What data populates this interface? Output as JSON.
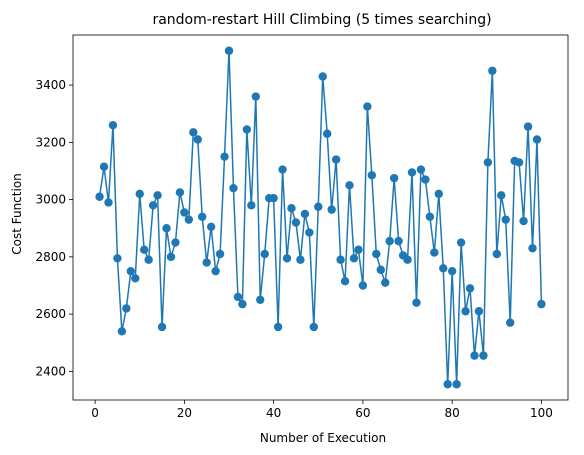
{
  "chart_data": {
    "type": "line",
    "title": "random-restart Hill Climbing (5 times searching)",
    "xlabel": "Number of Execution",
    "ylabel": "Cost Function",
    "xlim": [
      -4.95,
      105.95
    ],
    "ylim": [
      2300,
      3575
    ],
    "xticks": [
      0,
      20,
      40,
      60,
      80,
      100
    ],
    "yticks": [
      2400,
      2600,
      2800,
      3000,
      3200,
      3400
    ],
    "grid": false,
    "marker": "circle",
    "series": [
      {
        "color": "#1f77b4",
        "x": [
          1,
          2,
          3,
          4,
          5,
          6,
          7,
          8,
          9,
          10,
          11,
          12,
          13,
          14,
          15,
          16,
          17,
          18,
          19,
          20,
          21,
          22,
          23,
          24,
          25,
          26,
          27,
          28,
          29,
          30,
          31,
          32,
          33,
          34,
          35,
          36,
          37,
          38,
          39,
          40,
          41,
          42,
          43,
          44,
          45,
          46,
          47,
          48,
          49,
          50,
          51,
          52,
          53,
          54,
          55,
          56,
          57,
          58,
          59,
          60,
          61,
          62,
          63,
          64,
          65,
          66,
          67,
          68,
          69,
          70,
          71,
          72,
          73,
          74,
          75,
          76,
          77,
          78,
          79,
          80,
          81,
          82,
          83,
          84,
          85,
          86,
          87,
          88,
          89,
          90,
          91,
          92,
          93,
          94,
          95,
          96,
          97,
          98,
          99,
          100
        ],
        "y": [
          3010,
          3115,
          2990,
          3260,
          2795,
          2540,
          2620,
          2750,
          2725,
          3020,
          2825,
          2790,
          2980,
          3015,
          2555,
          2900,
          2800,
          2850,
          3025,
          2955,
          2930,
          3235,
          3210,
          2940,
          2780,
          2905,
          2750,
          2810,
          3150,
          3520,
          3040,
          2660,
          2635,
          3245,
          2980,
          3360,
          2650,
          2810,
          3005,
          3005,
          2555,
          3105,
          2795,
          2970,
          2920,
          2790,
          2950,
          2885,
          2555,
          2975,
          3430,
          3230,
          2965,
          3140,
          2790,
          2715,
          3050,
          2795,
          2825,
          2700,
          3325,
          3085,
          2810,
          2755,
          2710,
          2855,
          3075,
          2855,
          2805,
          2790,
          3095,
          2640,
          3105,
          3070,
          2940,
          2815,
          3020,
          2760,
          2355,
          2750,
          2355,
          2850,
          2610,
          2690,
          2455,
          2610,
          2455,
          3130,
          3450,
          2810,
          3015,
          2930,
          2570,
          3135,
          3130,
          2925,
          3255,
          2830,
          3210,
          2635
        ]
      }
    ]
  }
}
